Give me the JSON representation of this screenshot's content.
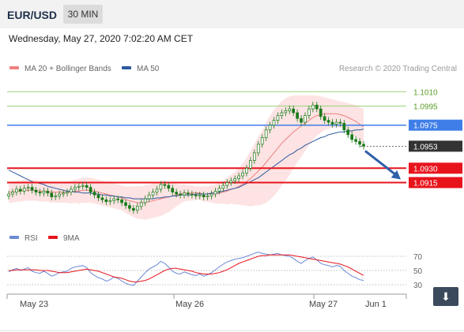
{
  "header": {
    "symbol": "EUR/USD",
    "timeframe": "30 MIN",
    "datetime": "Wednesday, May 27, 2020 7:02:20 AM CET"
  },
  "colors": {
    "ma20_bollinger": "#f08080",
    "bollinger_band_fill": "#fde3e3",
    "ma50": "#2c5aa0",
    "candle": "#1a7a1a",
    "line_green": "#9bd47a",
    "line_blue": "#3f7ee8",
    "line_red": "#e8141c",
    "current_price": "#333333",
    "rsi": "#6b8ad6",
    "rsi_9ma": "#e8141c",
    "arrow": "#2f5fa8"
  },
  "chart_data": [
    {
      "type": "candlestick",
      "legend": [
        "MA 20 + Bollinger Bands",
        "MA 50"
      ],
      "watermark": "Research © 2020 Trading Central",
      "x_tick_labels": [
        "May 23",
        "May 26",
        "May 27",
        "Jun 1"
      ],
      "ylim": [
        1.0875,
        1.103
      ],
      "levels": [
        {
          "value": 1.101,
          "label": "1.1010",
          "style": "green-line"
        },
        {
          "value": 1.0995,
          "label": "1.0995",
          "style": "green-line"
        },
        {
          "value": 1.0975,
          "label": "1.0975",
          "style": "blue-box"
        },
        {
          "value": 1.0953,
          "label": "1.0953",
          "style": "current-price"
        },
        {
          "value": 1.093,
          "label": "1.0930",
          "style": "red-box"
        },
        {
          "value": 1.0915,
          "label": "1.0915",
          "style": "red-box"
        }
      ],
      "forecast_arrow": {
        "from": 1.0948,
        "to": 1.0915
      },
      "close": [
        1.0903,
        1.0905,
        1.0908,
        1.0906,
        1.0909,
        1.091,
        1.0907,
        1.0905,
        1.0904,
        1.0906,
        1.0904,
        1.09,
        1.0901,
        1.0903,
        1.0904,
        1.0905,
        1.0908,
        1.091,
        1.0911,
        1.0912,
        1.091,
        1.0905,
        1.0902,
        1.0899,
        1.0897,
        1.0895,
        1.0896,
        1.0898,
        1.0897,
        1.0894,
        1.0891,
        1.0888,
        1.0886,
        1.089,
        1.0894,
        1.0898,
        1.0902,
        1.0905,
        1.0908,
        1.0913,
        1.0912,
        1.0909,
        1.0905,
        1.0903,
        1.0902,
        1.0904,
        1.0903,
        1.0902,
        1.0901,
        1.0902,
        1.09,
        1.0901,
        1.0903,
        1.0906,
        1.0909,
        1.0912,
        1.0915,
        1.0917,
        1.0919,
        1.0922,
        1.0925,
        1.093,
        1.0938,
        1.0946,
        1.0955,
        1.0962,
        1.097,
        1.0975,
        1.098,
        1.0985,
        1.0988,
        1.099,
        1.0992,
        1.0988,
        1.0982,
        1.0978,
        1.0985,
        1.0992,
        1.0996,
        1.0992,
        1.0984,
        1.098,
        1.0978,
        1.0976,
        1.0978,
        1.0977,
        1.097,
        1.0965,
        1.096,
        1.0958,
        1.0955,
        1.0953
      ],
      "ma20": [
        1.0905,
        1.0905,
        1.0906,
        1.0906,
        1.0907,
        1.0907,
        1.0907,
        1.0907,
        1.0906,
        1.0906,
        1.0906,
        1.0905,
        1.0905,
        1.0905,
        1.0905,
        1.0905,
        1.0905,
        1.0906,
        1.0906,
        1.0907,
        1.0907,
        1.0907,
        1.0906,
        1.0905,
        1.0904,
        1.0903,
        1.0902,
        1.0901,
        1.09,
        1.0899,
        1.0897,
        1.0896,
        1.0895,
        1.0894,
        1.0894,
        1.0894,
        1.0895,
        1.0896,
        1.0897,
        1.0898,
        1.0899,
        1.09,
        1.0901,
        1.0902,
        1.0903,
        1.0904,
        1.0904,
        1.0904,
        1.0904,
        1.0904,
        1.0903,
        1.0903,
        1.0903,
        1.0903,
        1.0904,
        1.0905,
        1.0906,
        1.0908,
        1.0909,
        1.0911,
        1.0913,
        1.0916,
        1.0919,
        1.0923,
        1.0927,
        1.0931,
        1.0936,
        1.0941,
        1.0946,
        1.0951,
        1.0956,
        1.096,
        1.0964,
        1.0968,
        1.0971,
        1.0974,
        1.0977,
        1.098,
        1.0983,
        1.0985,
        1.0986,
        1.0987,
        1.0987,
        1.0987,
        1.0987,
        1.0986,
        1.0985,
        1.0983,
        1.0981,
        1.0979,
        1.0976,
        1.0973
      ],
      "ma50": [
        1.0928,
        1.0926,
        1.0924,
        1.0922,
        1.092,
        1.0918,
        1.0916,
        1.0915,
        1.0914,
        1.0913,
        1.0911,
        1.091,
        1.0909,
        1.0908,
        1.0907,
        1.0906,
        1.0906,
        1.0905,
        1.0905,
        1.0904,
        1.0904,
        1.0904,
        1.0903,
        1.0903,
        1.0902,
        1.0902,
        1.0901,
        1.0901,
        1.09,
        1.09,
        1.0899,
        1.0899,
        1.0898,
        1.0898,
        1.0898,
        1.0898,
        1.0898,
        1.0898,
        1.0899,
        1.0899,
        1.09,
        1.09,
        1.0901,
        1.0901,
        1.0902,
        1.0902,
        1.0902,
        1.0902,
        1.0903,
        1.0903,
        1.0903,
        1.0903,
        1.0904,
        1.0904,
        1.0905,
        1.0906,
        1.0907,
        1.0908,
        1.0909,
        1.091,
        1.0912,
        1.0914,
        1.0916,
        1.0918,
        1.092,
        1.0923,
        1.0926,
        1.0929,
        1.0932,
        1.0935,
        1.0938,
        1.0941,
        1.0944,
        1.0946,
        1.0949,
        1.0951,
        1.0954,
        1.0956,
        1.0958,
        1.096,
        1.0962,
        1.0963,
        1.0965,
        1.0966,
        1.0967,
        1.0968,
        1.0968,
        1.0969,
        1.0969,
        1.097,
        1.097,
        1.0971
      ],
      "bb_upper": [
        1.0916,
        1.0916,
        1.0917,
        1.0917,
        1.0918,
        1.0918,
        1.0918,
        1.0918,
        1.0917,
        1.0917,
        1.0917,
        1.0916,
        1.0916,
        1.0916,
        1.0916,
        1.0916,
        1.0917,
        1.0918,
        1.0919,
        1.092,
        1.092,
        1.092,
        1.0919,
        1.0918,
        1.0917,
        1.0916,
        1.0915,
        1.0914,
        1.0913,
        1.0912,
        1.0911,
        1.0911,
        1.0911,
        1.0911,
        1.0911,
        1.0912,
        1.0913,
        1.0914,
        1.0915,
        1.0916,
        1.0916,
        1.0916,
        1.0915,
        1.0914,
        1.0913,
        1.0913,
        1.0912,
        1.0912,
        1.0911,
        1.0911,
        1.0911,
        1.0911,
        1.0912,
        1.0913,
        1.0915,
        1.0917,
        1.092,
        1.0923,
        1.0926,
        1.093,
        1.0935,
        1.0941,
        1.0948,
        1.0955,
        1.0963,
        1.097,
        1.0978,
        1.0985,
        1.0991,
        1.0996,
        1.1,
        1.1003,
        1.1005,
        1.1006,
        1.1006,
        1.1006,
        1.1006,
        1.1006,
        1.1006,
        1.1006,
        1.1005,
        1.1004,
        1.1003,
        1.1002,
        1.1001,
        1.1,
        1.0999,
        1.0998,
        1.0997,
        1.0996,
        1.0994,
        1.0992
      ],
      "bb_lower": [
        1.0894,
        1.0894,
        1.0895,
        1.0895,
        1.0896,
        1.0896,
        1.0896,
        1.0896,
        1.0895,
        1.0895,
        1.0895,
        1.0894,
        1.0894,
        1.0894,
        1.0894,
        1.0894,
        1.0893,
        1.0894,
        1.0893,
        1.0894,
        1.0894,
        1.0894,
        1.0893,
        1.0892,
        1.0891,
        1.089,
        1.0889,
        1.0888,
        1.0887,
        1.0886,
        1.0883,
        1.0881,
        1.0879,
        1.0877,
        1.0877,
        1.0876,
        1.0877,
        1.0878,
        1.0879,
        1.088,
        1.0882,
        1.0884,
        1.0887,
        1.089,
        1.0893,
        1.0895,
        1.0896,
        1.0896,
        1.0897,
        1.0897,
        1.0895,
        1.0895,
        1.0894,
        1.0893,
        1.0893,
        1.0893,
        1.0892,
        1.0893,
        1.0892,
        1.0892,
        1.0891,
        1.0891,
        1.089,
        1.0891,
        1.0891,
        1.0892,
        1.0894,
        1.0897,
        1.0901,
        1.0906,
        1.0912,
        1.0917,
        1.0923,
        1.093,
        1.0936,
        1.0942,
        1.0948,
        1.0954,
        1.096,
        1.0964,
        1.0967,
        1.097,
        1.0971,
        1.0972,
        1.0973,
        1.0972,
        1.0971,
        1.0968,
        1.0965,
        1.0962,
        1.0958,
        1.0954
      ]
    },
    {
      "type": "line",
      "legend": [
        "RSI",
        "9MA"
      ],
      "ylim": [
        20,
        80
      ],
      "y_tick_labels": [
        "70",
        "50",
        "30"
      ],
      "levels": [
        70,
        50,
        30
      ],
      "rsi": [
        48,
        51,
        53,
        50,
        52,
        54,
        49,
        47,
        46,
        49,
        46,
        42,
        44,
        47,
        48,
        49,
        53,
        55,
        56,
        57,
        54,
        47,
        43,
        40,
        38,
        35,
        37,
        41,
        39,
        35,
        32,
        30,
        29,
        35,
        41,
        47,
        52,
        55,
        58,
        63,
        60,
        55,
        49,
        46,
        45,
        48,
        46,
        44,
        43,
        45,
        42,
        44,
        47,
        51,
        55,
        59,
        62,
        64,
        66,
        67,
        68,
        70,
        72,
        74,
        76,
        74,
        73,
        72,
        73,
        74,
        72,
        71,
        70,
        67,
        63,
        60,
        64,
        67,
        69,
        65,
        60,
        58,
        57,
        55,
        57,
        56,
        50,
        46,
        42,
        40,
        37,
        36
      ],
      "rsi_9ma": [
        50,
        50,
        51,
        51,
        51,
        51,
        51,
        51,
        50,
        50,
        50,
        49,
        48,
        47,
        47,
        47,
        48,
        49,
        50,
        51,
        52,
        51,
        50,
        49,
        47,
        45,
        43,
        41,
        40,
        39,
        37,
        35,
        34,
        34,
        35,
        36,
        38,
        41,
        44,
        47,
        50,
        52,
        53,
        53,
        52,
        51,
        50,
        49,
        47,
        46,
        45,
        45,
        45,
        46,
        47,
        49,
        51,
        54,
        57,
        60,
        62,
        64,
        66,
        68,
        70,
        71,
        71,
        72,
        72,
        72,
        72,
        72,
        72,
        71,
        70,
        69,
        68,
        67,
        66,
        65,
        64,
        63,
        62,
        61,
        60,
        59,
        57,
        55,
        52,
        49,
        46,
        43
      ]
    }
  ]
}
